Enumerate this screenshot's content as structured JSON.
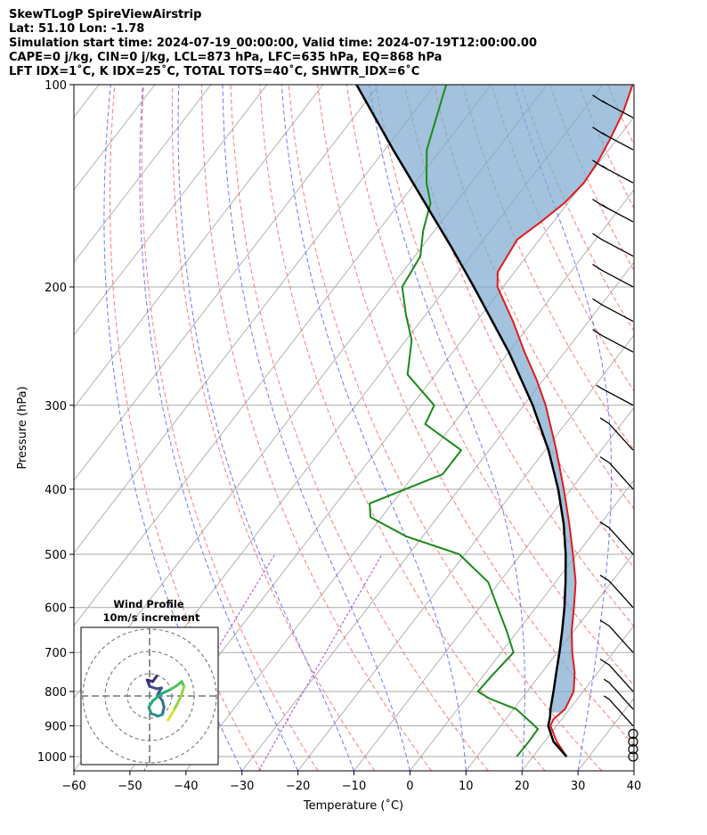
{
  "header": {
    "line1": "SkewTLogP SpireViewAirstrip",
    "line2": "Lat: 51.10   Lon: -1.78",
    "line3": "Simulation start time: 2024-07-19_00:00:00, Valid time: 2024-07-19T12:00:00.00",
    "line4": "CAPE=0 j/kg, CIN=0 j/kg, LCL=873 hPa, LFC=635 hPa, EQ=868 hPa",
    "line5": "LFT IDX=1˚C, K IDX=25˚C, TOTAL TOTS=40˚C, SHWTR_IDX=6˚C"
  },
  "chart_data": {
    "type": "skewT",
    "xlabel": "Temperature (˚C)",
    "ylabel": "Pressure (hPa)",
    "xlim": [
      -60,
      40
    ],
    "ylim": [
      1050,
      100
    ],
    "y_scale": "log",
    "grid": true,
    "x_ticks": [
      -60,
      -50,
      -40,
      -30,
      -20,
      -10,
      0,
      10,
      20,
      30,
      40
    ],
    "y_ticks": [
      100,
      200,
      300,
      400,
      500,
      600,
      700,
      800,
      900,
      1000
    ],
    "colors": {
      "temperature": "#e31a1c",
      "dewpoint": "#1a8a1a",
      "parcel": "#000000",
      "cape_fill": "#7eabd0",
      "isotherm": "#aaaaaa",
      "dry_adiabat": "#ff6b6b",
      "moist_adiabat": "#5a6bff",
      "mixing_ratio": "#a64dcc",
      "wind_barb": "#000000"
    },
    "temperature_profile": [
      {
        "p": 1000,
        "t": 26.0
      },
      {
        "p": 950,
        "t": 22.2
      },
      {
        "p": 900,
        "t": 18.9
      },
      {
        "p": 880,
        "t": 18.5
      },
      {
        "p": 850,
        "t": 19.2
      },
      {
        "p": 800,
        "t": 18.3
      },
      {
        "p": 750,
        "t": 15.9
      },
      {
        "p": 700,
        "t": 12.7
      },
      {
        "p": 650,
        "t": 9.6
      },
      {
        "p": 600,
        "t": 6.8
      },
      {
        "p": 550,
        "t": 3.6
      },
      {
        "p": 500,
        "t": -0.7
      },
      {
        "p": 450,
        "t": -5.6
      },
      {
        "p": 400,
        "t": -11.3
      },
      {
        "p": 350,
        "t": -18.0
      },
      {
        "p": 300,
        "t": -26.1
      },
      {
        "p": 275,
        "t": -31.2
      },
      {
        "p": 250,
        "t": -37.2
      },
      {
        "p": 225,
        "t": -43.5
      },
      {
        "p": 200,
        "t": -51.0
      },
      {
        "p": 190,
        "t": -53.0
      },
      {
        "p": 180,
        "t": -53.5
      },
      {
        "p": 170,
        "t": -54.0
      },
      {
        "p": 160,
        "t": -52.2
      },
      {
        "p": 150,
        "t": -50.6
      },
      {
        "p": 140,
        "t": -49.9
      },
      {
        "p": 130,
        "t": -50.3
      },
      {
        "p": 120,
        "t": -51.3
      },
      {
        "p": 110,
        "t": -52.6
      },
      {
        "p": 100,
        "t": -54.7
      }
    ],
    "dewpoint_profile": [
      {
        "p": 1000,
        "t": 17.1
      },
      {
        "p": 950,
        "t": 17.2
      },
      {
        "p": 910,
        "t": 17.1
      },
      {
        "p": 890,
        "t": 15.0
      },
      {
        "p": 850,
        "t": 10.5
      },
      {
        "p": 820,
        "t": 4.3
      },
      {
        "p": 800,
        "t": 1.2
      },
      {
        "p": 760,
        "t": 1.5
      },
      {
        "p": 700,
        "t": 2.2
      },
      {
        "p": 650,
        "t": -2.0
      },
      {
        "p": 600,
        "t": -6.8
      },
      {
        "p": 550,
        "t": -12.0
      },
      {
        "p": 500,
        "t": -21.0
      },
      {
        "p": 470,
        "t": -33.0
      },
      {
        "p": 440,
        "t": -42.0
      },
      {
        "p": 420,
        "t": -44.0
      },
      {
        "p": 380,
        "t": -35.0
      },
      {
        "p": 350,
        "t": -35.0
      },
      {
        "p": 320,
        "t": -45.0
      },
      {
        "p": 300,
        "t": -46.0
      },
      {
        "p": 270,
        "t": -55.0
      },
      {
        "p": 240,
        "t": -59.0
      },
      {
        "p": 220,
        "t": -63.5
      },
      {
        "p": 200,
        "t": -68.0
      },
      {
        "p": 180,
        "t": -69.0
      },
      {
        "p": 165,
        "t": -72.0
      },
      {
        "p": 150,
        "t": -74.5
      },
      {
        "p": 140,
        "t": -78.0
      },
      {
        "p": 125,
        "t": -82.5
      },
      {
        "p": 100,
        "t": -88.0
      }
    ],
    "parcel_profile": [
      {
        "p": 1000,
        "t": 26.0
      },
      {
        "p": 950,
        "t": 21.6
      },
      {
        "p": 900,
        "t": 18.5
      },
      {
        "p": 873,
        "t": 17.6
      },
      {
        "p": 850,
        "t": 16.6
      },
      {
        "p": 800,
        "t": 14.7
      },
      {
        "p": 750,
        "t": 12.6
      },
      {
        "p": 700,
        "t": 10.4
      },
      {
        "p": 650,
        "t": 7.9
      },
      {
        "p": 600,
        "t": 5.1
      },
      {
        "p": 550,
        "t": 1.8
      },
      {
        "p": 500,
        "t": -2.0
      },
      {
        "p": 450,
        "t": -6.6
      },
      {
        "p": 400,
        "t": -12.3
      },
      {
        "p": 350,
        "t": -19.4
      },
      {
        "p": 300,
        "t": -28.4
      },
      {
        "p": 250,
        "t": -40.0
      },
      {
        "p": 200,
        "t": -55.2
      },
      {
        "p": 175,
        "t": -64.5
      },
      {
        "p": 150,
        "t": -75.5
      },
      {
        "p": 125,
        "t": -88.5
      },
      {
        "p": 100,
        "t": -104.0
      }
    ],
    "wind_barbs": [
      {
        "p": 1000,
        "speed_kt": 0
      },
      {
        "p": 975,
        "speed_kt": 0
      },
      {
        "p": 950,
        "speed_kt": 0
      },
      {
        "p": 925,
        "speed_kt": 0
      },
      {
        "p": 900,
        "speed_kt": 5
      },
      {
        "p": 850,
        "speed_kt": 5
      },
      {
        "p": 800,
        "speed_kt": 10
      },
      {
        "p": 700,
        "speed_kt": 10
      },
      {
        "p": 600,
        "speed_kt": 10
      },
      {
        "p": 500,
        "speed_kt": 10
      },
      {
        "p": 400,
        "speed_kt": 10
      },
      {
        "p": 350,
        "speed_kt": 10
      },
      {
        "p": 300,
        "speed_kt": 5
      },
      {
        "p": 250,
        "speed_kt": 10
      },
      {
        "p": 225,
        "speed_kt": 10
      },
      {
        "p": 200,
        "speed_kt": 10
      },
      {
        "p": 180,
        "speed_kt": 10
      },
      {
        "p": 160,
        "speed_kt": 15
      },
      {
        "p": 140,
        "speed_kt": 15
      },
      {
        "p": 125,
        "speed_kt": 15
      },
      {
        "p": 112,
        "speed_kt": 15
      }
    ],
    "inset": {
      "title_line1": "Wind Profile",
      "title_line2": "10m/s increment",
      "rings": 3,
      "hodograph": [
        [
          0.9,
          2.5
        ],
        [
          0.4,
          1.8
        ],
        [
          -0.3,
          2.0
        ],
        [
          0.0,
          1.2
        ],
        [
          0.9,
          0.9
        ],
        [
          1.5,
          1.0
        ],
        [
          1.0,
          0.2
        ],
        [
          1.6,
          -0.6
        ],
        [
          1.8,
          -1.4
        ],
        [
          1.6,
          -2.3
        ],
        [
          1.1,
          -2.5
        ],
        [
          0.2,
          -2.2
        ],
        [
          -0.1,
          -1.4
        ],
        [
          0.4,
          -0.6
        ],
        [
          1.5,
          0.3
        ],
        [
          2.6,
          0.8
        ],
        [
          3.4,
          1.3
        ],
        [
          4.0,
          1.8
        ],
        [
          4.3,
          1.2
        ],
        [
          4.0,
          0.2
        ],
        [
          3.5,
          -0.9
        ],
        [
          3.0,
          -1.8
        ],
        [
          2.6,
          -2.5
        ],
        [
          2.3,
          -3.0
        ]
      ]
    }
  }
}
